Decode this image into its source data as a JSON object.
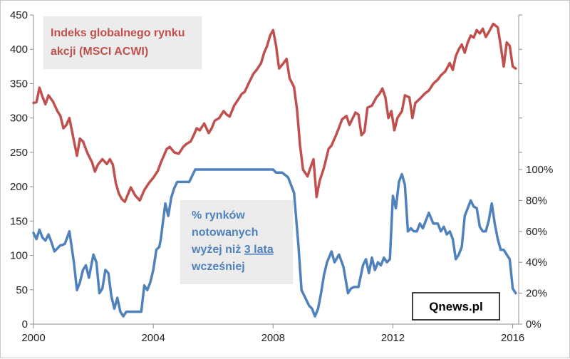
{
  "chart_data": {
    "type": "line",
    "x_range": [
      2000,
      2016.2
    ],
    "x_ticks": [
      "2000",
      "2004",
      "2008",
      "2012",
      "2016"
    ],
    "y_left": {
      "range": [
        0,
        450
      ],
      "ticks": [
        "0",
        "50",
        "100",
        "150",
        "200",
        "250",
        "300",
        "350",
        "400",
        "450"
      ]
    },
    "y_right": {
      "range": [
        0,
        100
      ],
      "ticks": [
        "0%",
        "20%",
        "40%",
        "60%",
        "80%",
        "100%"
      ]
    },
    "grid": "none",
    "series": [
      {
        "name": "Indeks globalnego rynku akcji (MSCI ACWI)",
        "axis": "left",
        "color": "#c0504d",
        "points": [
          [
            2000.0,
            322
          ],
          [
            2000.1,
            323
          ],
          [
            2000.2,
            344
          ],
          [
            2000.3,
            331
          ],
          [
            2000.4,
            320
          ],
          [
            2000.5,
            333
          ],
          [
            2000.65,
            324
          ],
          [
            2000.8,
            310
          ],
          [
            2000.9,
            303
          ],
          [
            2001.0,
            285
          ],
          [
            2001.1,
            290
          ],
          [
            2001.2,
            300
          ],
          [
            2001.3,
            278
          ],
          [
            2001.45,
            245
          ],
          [
            2001.55,
            270
          ],
          [
            2001.65,
            266
          ],
          [
            2001.8,
            249
          ],
          [
            2001.95,
            236
          ],
          [
            2002.05,
            222
          ],
          [
            2002.15,
            232
          ],
          [
            2002.3,
            240
          ],
          [
            2002.45,
            233
          ],
          [
            2002.55,
            240
          ],
          [
            2002.65,
            232
          ],
          [
            2002.75,
            205
          ],
          [
            2002.85,
            190
          ],
          [
            2002.95,
            182
          ],
          [
            2003.05,
            178
          ],
          [
            2003.25,
            199
          ],
          [
            2003.4,
            187
          ],
          [
            2003.55,
            180
          ],
          [
            2003.7,
            195
          ],
          [
            2003.85,
            205
          ],
          [
            2004.0,
            213
          ],
          [
            2004.15,
            223
          ],
          [
            2004.25,
            235
          ],
          [
            2004.35,
            245
          ],
          [
            2004.45,
            255
          ],
          [
            2004.55,
            258
          ],
          [
            2004.7,
            250
          ],
          [
            2004.85,
            248
          ],
          [
            2005.0,
            258
          ],
          [
            2005.1,
            262
          ],
          [
            2005.25,
            266
          ],
          [
            2005.35,
            275
          ],
          [
            2005.45,
            285
          ],
          [
            2005.55,
            282
          ],
          [
            2005.7,
            292
          ],
          [
            2005.85,
            278
          ],
          [
            2005.95,
            285
          ],
          [
            2006.05,
            296
          ],
          [
            2006.2,
            300
          ],
          [
            2006.35,
            310
          ],
          [
            2006.45,
            305
          ],
          [
            2006.55,
            302
          ],
          [
            2006.7,
            318
          ],
          [
            2006.85,
            328
          ],
          [
            2006.95,
            335
          ],
          [
            2007.05,
            338
          ],
          [
            2007.2,
            352
          ],
          [
            2007.35,
            365
          ],
          [
            2007.45,
            370
          ],
          [
            2007.6,
            380
          ],
          [
            2007.7,
            395
          ],
          [
            2007.8,
            405
          ],
          [
            2007.9,
            420
          ],
          [
            2008.0,
            428
          ],
          [
            2008.1,
            405
          ],
          [
            2008.2,
            372
          ],
          [
            2008.35,
            380
          ],
          [
            2008.45,
            386
          ],
          [
            2008.55,
            358
          ],
          [
            2008.7,
            345
          ],
          [
            2008.8,
            312
          ],
          [
            2008.9,
            260
          ],
          [
            2009.0,
            225
          ],
          [
            2009.15,
            215
          ],
          [
            2009.25,
            228
          ],
          [
            2009.35,
            240
          ],
          [
            2009.45,
            185
          ],
          [
            2009.55,
            208
          ],
          [
            2009.7,
            228
          ],
          [
            2009.85,
            255
          ],
          [
            2009.95,
            260
          ],
          [
            2010.1,
            275
          ],
          [
            2010.2,
            286
          ],
          [
            2010.3,
            298
          ],
          [
            2010.45,
            303
          ],
          [
            2010.55,
            290
          ],
          [
            2010.75,
            308
          ],
          [
            2010.85,
            305
          ],
          [
            2010.95,
            275
          ],
          [
            2011.05,
            280
          ],
          [
            2011.15,
            315
          ],
          [
            2011.3,
            318
          ],
          [
            2011.45,
            330
          ],
          [
            2011.55,
            335
          ],
          [
            2011.65,
            343
          ],
          [
            2011.75,
            330
          ],
          [
            2011.85,
            300
          ],
          [
            2011.95,
            310
          ],
          [
            2012.05,
            282
          ],
          [
            2012.15,
            300
          ],
          [
            2012.3,
            310
          ],
          [
            2012.4,
            333
          ],
          [
            2012.55,
            330
          ],
          [
            2012.65,
            300
          ],
          [
            2012.75,
            322
          ],
          [
            2012.9,
            328
          ],
          [
            2013.05,
            335
          ],
          [
            2013.2,
            340
          ],
          [
            2013.35,
            350
          ],
          [
            2013.5,
            356
          ],
          [
            2013.6,
            362
          ],
          [
            2013.75,
            368
          ],
          [
            2013.9,
            380
          ],
          [
            2014.0,
            370
          ],
          [
            2014.1,
            390
          ],
          [
            2014.2,
            400
          ],
          [
            2014.3,
            407
          ],
          [
            2014.4,
            395
          ],
          [
            2014.5,
            410
          ],
          [
            2014.6,
            420
          ],
          [
            2014.7,
            417
          ],
          [
            2014.8,
            428
          ],
          [
            2014.9,
            423
          ],
          [
            2015.0,
            430
          ],
          [
            2015.1,
            418
          ],
          [
            2015.2,
            425
          ],
          [
            2015.35,
            437
          ],
          [
            2015.5,
            432
          ],
          [
            2015.6,
            405
          ],
          [
            2015.7,
            375
          ],
          [
            2015.8,
            410
          ],
          [
            2015.9,
            405
          ],
          [
            2016.0,
            375
          ],
          [
            2016.1,
            372
          ]
        ]
      },
      {
        "name": "% rynków notowanych wyżej niż 3 lata wcześniej",
        "axis": "right",
        "color": "#4f81bd",
        "points": [
          [
            2000.0,
            59
          ],
          [
            2000.1,
            55
          ],
          [
            2000.2,
            61
          ],
          [
            2000.3,
            56
          ],
          [
            2000.4,
            54
          ],
          [
            2000.5,
            58
          ],
          [
            2000.6,
            53
          ],
          [
            2000.7,
            47
          ],
          [
            2000.8,
            49
          ],
          [
            2000.9,
            51
          ],
          [
            2000.95,
            51
          ],
          [
            2001.05,
            52
          ],
          [
            2001.2,
            60
          ],
          [
            2001.35,
            40
          ],
          [
            2001.45,
            22
          ],
          [
            2001.55,
            27
          ],
          [
            2001.65,
            35
          ],
          [
            2001.75,
            38
          ],
          [
            2001.85,
            30
          ],
          [
            2002.0,
            45
          ],
          [
            2002.1,
            40
          ],
          [
            2002.2,
            20
          ],
          [
            2002.3,
            23
          ],
          [
            2002.4,
            35
          ],
          [
            2002.5,
            33
          ],
          [
            2002.6,
            18
          ],
          [
            2002.7,
            10
          ],
          [
            2002.8,
            17
          ],
          [
            2002.9,
            8
          ],
          [
            2003.0,
            5
          ],
          [
            2003.1,
            8
          ],
          [
            2003.25,
            8
          ],
          [
            2003.35,
            8
          ],
          [
            2003.5,
            8
          ],
          [
            2003.6,
            8
          ],
          [
            2003.7,
            25
          ],
          [
            2003.8,
            22
          ],
          [
            2003.9,
            27
          ],
          [
            2004.0,
            35
          ],
          [
            2004.1,
            48
          ],
          [
            2004.2,
            50
          ],
          [
            2004.25,
            55
          ],
          [
            2004.4,
            78
          ],
          [
            2004.5,
            70
          ],
          [
            2004.6,
            82
          ],
          [
            2004.7,
            88
          ],
          [
            2004.8,
            92
          ],
          [
            2005.0,
            92
          ],
          [
            2005.2,
            92
          ],
          [
            2005.4,
            100
          ],
          [
            2005.6,
            100
          ],
          [
            2006.0,
            100
          ],
          [
            2006.5,
            100
          ],
          [
            2007.0,
            100
          ],
          [
            2007.5,
            100
          ],
          [
            2008.0,
            100
          ],
          [
            2008.1,
            98
          ],
          [
            2008.3,
            98
          ],
          [
            2008.5,
            95
          ],
          [
            2008.7,
            85
          ],
          [
            2008.85,
            50
          ],
          [
            2008.95,
            22
          ],
          [
            2009.05,
            18
          ],
          [
            2009.2,
            12
          ],
          [
            2009.3,
            10
          ],
          [
            2009.4,
            5
          ],
          [
            2009.5,
            10
          ],
          [
            2009.6,
            20
          ],
          [
            2009.7,
            32
          ],
          [
            2009.8,
            40
          ],
          [
            2009.95,
            47
          ],
          [
            2010.05,
            40
          ],
          [
            2010.2,
            45
          ],
          [
            2010.35,
            37
          ],
          [
            2010.5,
            20
          ],
          [
            2010.6,
            23
          ],
          [
            2010.7,
            24
          ],
          [
            2010.85,
            24
          ],
          [
            2011.0,
            38
          ],
          [
            2011.1,
            42
          ],
          [
            2011.2,
            33
          ],
          [
            2011.3,
            43
          ],
          [
            2011.4,
            35
          ],
          [
            2011.5,
            40
          ],
          [
            2011.6,
            38
          ],
          [
            2011.7,
            43
          ],
          [
            2011.8,
            40
          ],
          [
            2011.9,
            42
          ],
          [
            2012.0,
            83
          ],
          [
            2012.1,
            75
          ],
          [
            2012.2,
            92
          ],
          [
            2012.3,
            97
          ],
          [
            2012.4,
            90
          ],
          [
            2012.5,
            60
          ],
          [
            2012.6,
            62
          ],
          [
            2012.7,
            60
          ],
          [
            2012.8,
            60
          ],
          [
            2012.9,
            65
          ],
          [
            2013.0,
            62
          ],
          [
            2013.1,
            67
          ],
          [
            2013.2,
            72
          ],
          [
            2013.35,
            65
          ],
          [
            2013.5,
            65
          ],
          [
            2013.6,
            60
          ],
          [
            2013.7,
            63
          ],
          [
            2013.8,
            58
          ],
          [
            2013.9,
            60
          ],
          [
            2014.0,
            55
          ],
          [
            2014.1,
            42
          ],
          [
            2014.2,
            45
          ],
          [
            2014.3,
            50
          ],
          [
            2014.4,
            70
          ],
          [
            2014.5,
            75
          ],
          [
            2014.6,
            80
          ],
          [
            2014.7,
            76
          ],
          [
            2014.8,
            75
          ],
          [
            2014.9,
            63
          ],
          [
            2015.0,
            60
          ],
          [
            2015.1,
            60
          ],
          [
            2015.2,
            67
          ],
          [
            2015.3,
            78
          ],
          [
            2015.4,
            65
          ],
          [
            2015.5,
            55
          ],
          [
            2015.6,
            48
          ],
          [
            2015.7,
            48
          ],
          [
            2015.8,
            45
          ],
          [
            2015.9,
            42
          ],
          [
            2016.0,
            23
          ],
          [
            2016.1,
            20
          ]
        ]
      }
    ],
    "annotations": {
      "red_label": {
        "line1": "Indeks globalnego rynku",
        "line2": "akcji (MSCI ACWI)"
      },
      "blue_label": {
        "line1": "% rynków",
        "line2": "notowanych",
        "line3_pre": "wyżej niż ",
        "line3_underlined": "3 lata",
        "line4": "wcześniej"
      },
      "brand": "Qnews.pl"
    }
  }
}
